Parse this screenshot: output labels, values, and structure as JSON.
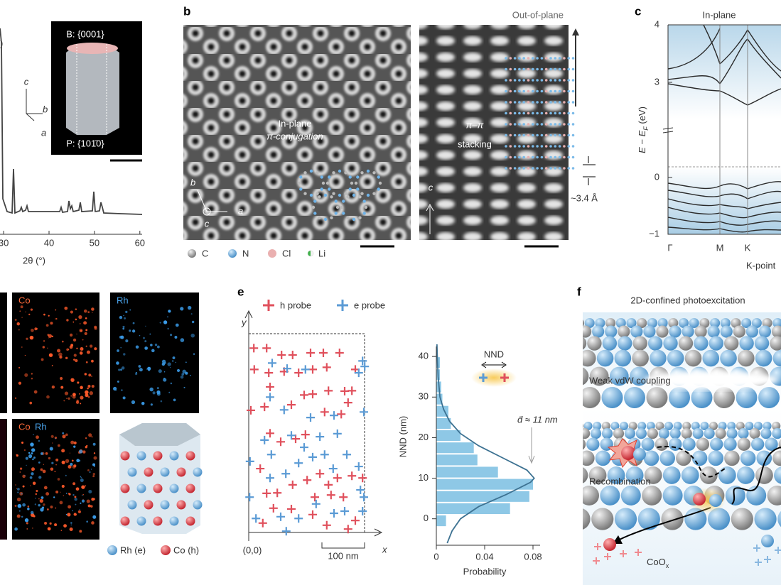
{
  "panel_labels": [
    "b",
    "c",
    "e",
    "f"
  ],
  "chart_data": [
    {
      "type": "line",
      "cut_text": ")",
      "x_label": "2θ (°)",
      "xlim": [
        29.2,
        60.5
      ],
      "xticks": [
        30,
        40,
        50,
        60
      ]
    },
    {
      "type": "line",
      "title": "In-plane",
      "y_label": {
        "main": "E − E",
        "sub": "F",
        "tail": " (eV)"
      },
      "ylim": [
        -1,
        4
      ],
      "yticks": [
        4,
        3,
        0,
        {
          "value": -1,
          "label": "−1"
        }
      ],
      "categories": [
        "Γ",
        "M",
        "K"
      ],
      "x_label": "K-point"
    },
    {
      "type": "scatter",
      "x_label": "x",
      "y_label": "y",
      "origin_label": "(0,0)",
      "scale_bar": "100 nm",
      "xlim": [
        0,
        275
      ],
      "ylim": [
        0,
        467
      ],
      "series": [
        {
          "name": "h probe",
          "color": "#e0505c",
          "x": [
            12,
            42,
            13,
            47,
            50,
            5,
            37,
            77,
            103,
            145,
            175,
            213,
            83,
            117,
            150,
            183,
            250,
            100,
            130,
            150,
            187,
            225,
            233,
            217,
            242,
            178,
            50,
            75,
            110,
            133,
            27,
            42,
            67,
            58,
            100,
            103,
            137,
            167,
            187,
            208,
            242,
            267,
            155,
            193,
            222,
            150,
            250,
            33,
            183,
            233
          ],
          "y": [
            433,
            433,
            383,
            375,
            342,
            287,
            295,
            417,
            417,
            422,
            422,
            422,
            378,
            375,
            383,
            388,
            383,
            300,
            323,
            325,
            333,
            332,
            305,
            278,
            333,
            283,
            233,
            213,
            220,
            230,
            150,
            92,
            93,
            57,
            55,
            112,
            123,
            138,
            112,
            128,
            133,
            128,
            83,
            88,
            83,
            42,
            28,
            22,
            17,
            8
          ]
        },
        {
          "name": "e probe",
          "color": "#5b9bd5",
          "x": [
            55,
            90,
            133,
            50,
            83,
            267,
            272,
            270,
            258,
            145,
            200,
            37,
            53,
            100,
            130,
            167,
            208,
            3,
            50,
            87,
            117,
            150,
            178,
            198,
            230,
            258,
            262,
            270,
            2,
            75,
            117,
            158,
            200,
            225,
            267,
            88,
            17
          ],
          "y": [
            398,
            385,
            383,
            318,
            288,
            403,
            390,
            283,
            375,
            270,
            275,
            217,
            183,
            228,
            200,
            225,
            232,
            167,
            128,
            138,
            163,
            177,
            183,
            150,
            183,
            155,
            100,
            83,
            83,
            37,
            33,
            67,
            45,
            50,
            50,
            3,
            33
          ]
        }
      ]
    },
    {
      "type": "histogram",
      "orientation": "horizontal",
      "y_label": "NND (nm)",
      "x_label": "Probability",
      "ylim": [
        -6,
        43
      ],
      "yticks": [
        0,
        10,
        20,
        30,
        40
      ],
      "xlim": [
        0,
        0.08
      ],
      "xticks": [
        0,
        0.04,
        0.08
      ],
      "bins": [
        -2,
        1,
        4,
        7,
        10,
        13,
        16,
        19,
        22,
        25,
        28,
        31,
        34,
        37,
        40
      ],
      "values": [
        0.008,
        0.061,
        0.077,
        0.08,
        0.051,
        0.034,
        0.031,
        0.02,
        0.012,
        0.01,
        0.005,
        0.004,
        0.003,
        0.003
      ],
      "color": "#8ec8e6",
      "fit": {
        "nnd": [
          -6,
          -3,
          0,
          3,
          6,
          9,
          10,
          12,
          15,
          18,
          21,
          24,
          27,
          30,
          35,
          40,
          43
        ],
        "probability": [
          0.009,
          0.013,
          0.02,
          0.035,
          0.058,
          0.078,
          0.081,
          0.075,
          0.055,
          0.035,
          0.02,
          0.011,
          0.006,
          0.003,
          0.0015,
          0.0008,
          0.0005
        ],
        "color": "#3d7292"
      },
      "annotation": "d̄ ≈ 11 nm",
      "inset_label": "NND"
    }
  ],
  "panel_a_inset": {
    "top_facet": "B: {0001}",
    "side_facet": "P: {101̄0}",
    "axes": [
      "c",
      "b",
      "a"
    ]
  },
  "panel_b": {
    "image1": {
      "text": [
        "In-plane",
        "π-conjugation"
      ],
      "axes": [
        "b",
        "c",
        "a"
      ]
    },
    "image2": {
      "title": "Out-of-plane",
      "text": [
        "π–π",
        "stacking"
      ],
      "axis": "c",
      "spacing": "~3.4 Å"
    },
    "legend": [
      "C",
      "N",
      "Cl",
      "Li"
    ]
  },
  "panel_d": {
    "map_labels": [
      "Co",
      "Rh",
      "Co",
      "Rh"
    ],
    "legend": [
      "Rh (e)",
      "Co (h)"
    ]
  },
  "panel_f": {
    "title": "2D-confined photoexcitation",
    "texts": [
      "Weak vdW coupling",
      "Recombination"
    ],
    "coox": {
      "main": "CoO",
      "sub": "x"
    }
  }
}
